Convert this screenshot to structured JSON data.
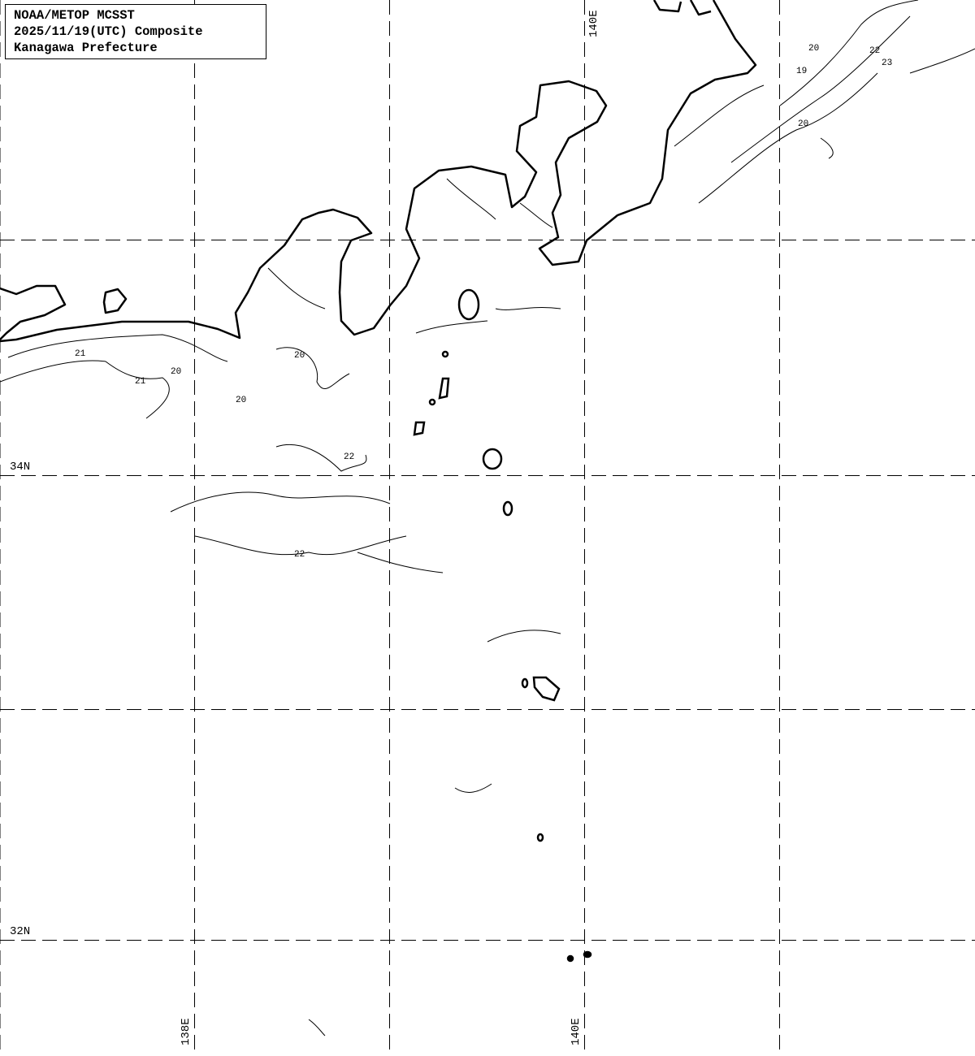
{
  "title": {
    "line1": "NOAA/METOP MCSST",
    "line2": "2025/11/19(UTC) Composite",
    "line3": "Kanagawa Prefecture"
  },
  "grid_labels": {
    "lon_top": "140E",
    "lat_34": "34N",
    "lat_32": "32N",
    "lon_138": "138E",
    "lon_140": "140E"
  },
  "contour_labels": [
    "20",
    "21",
    "22",
    "19",
    "20",
    "22",
    "23",
    "20",
    "21",
    "20",
    "20",
    "22"
  ],
  "colors": {
    "land_outline": "#000000",
    "contour": "#000000",
    "grid": "#000000",
    "background": "#ffffff"
  }
}
